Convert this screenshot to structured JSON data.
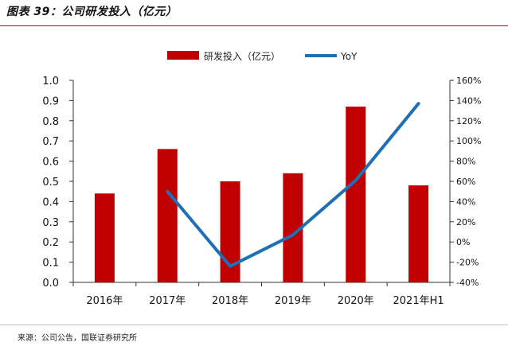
{
  "figure_title": "图表 39：公司研发投入（亿元）",
  "source_note": "来源：公司公告，国联证券研究所",
  "colors": {
    "bar": "#c00000",
    "line": "#1f6fb5",
    "title_rule": "#b8001a"
  },
  "chart_data": {
    "type": "bar",
    "categories": [
      "2016年",
      "2017年",
      "2018年",
      "2019年",
      "2020年",
      "2021年H1"
    ],
    "series": [
      {
        "name": "研发投入（亿元）",
        "type": "bar",
        "axis": "left",
        "values": [
          0.44,
          0.66,
          0.5,
          0.54,
          0.87,
          0.48
        ]
      },
      {
        "name": "YoY",
        "type": "line",
        "axis": "right",
        "values": [
          null,
          0.5,
          -0.24,
          0.07,
          0.61,
          1.37
        ]
      }
    ],
    "y_left": {
      "min": 0,
      "max": 1.0,
      "step": 0.1,
      "ticks": [
        "0.0",
        "0.1",
        "0.2",
        "0.3",
        "0.4",
        "0.5",
        "0.6",
        "0.7",
        "0.8",
        "0.9",
        "1.0"
      ]
    },
    "y_right": {
      "min": -0.4,
      "max": 1.6,
      "step": 0.2,
      "ticks": [
        "-40%",
        "-20%",
        "0%",
        "20%",
        "40%",
        "60%",
        "80%",
        "100%",
        "120%",
        "140%",
        "160%"
      ]
    },
    "legend_position": "top-center",
    "grid": false
  }
}
